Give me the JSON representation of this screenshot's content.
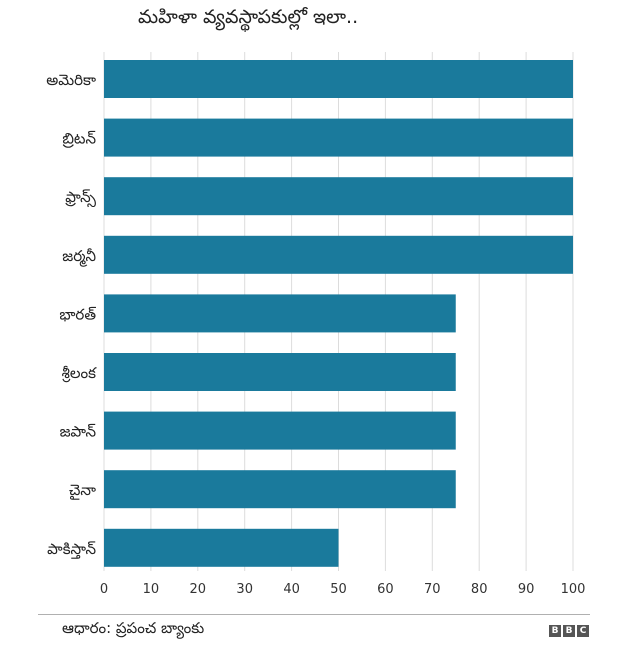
{
  "chart_data": {
    "type": "bar",
    "orientation": "horizontal",
    "title": "మహిళా వ్యవస్థాపకుల్లో ఇలా..",
    "categories": [
      "అమెరికా",
      "బ్రిటన్",
      "ఫ్రాన్స్",
      "జర్మనీ",
      "భారత్",
      "శ్రీలంక",
      "జపాన్",
      "చైనా",
      "పాకిస్తాన్"
    ],
    "values": [
      100,
      100,
      100,
      100,
      75,
      75,
      75,
      75,
      50
    ],
    "xlim": [
      0,
      100
    ],
    "xticks": [
      0,
      10,
      20,
      30,
      40,
      50,
      60,
      70,
      80,
      90,
      100
    ],
    "grid": true,
    "bar_color": "#1a7a9c",
    "grid_color": "#dcdcdc"
  },
  "footer": {
    "source": "ఆధారం: ప్రపంచ బ్యాంకు",
    "logo_letters": [
      "B",
      "B",
      "C"
    ]
  }
}
